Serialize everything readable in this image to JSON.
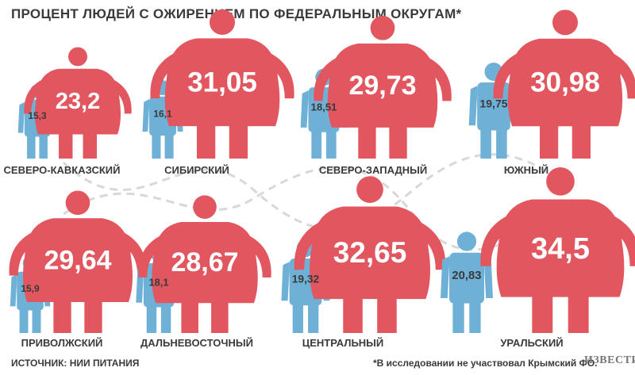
{
  "title": "ПРОЦЕНТ ЛЮДЕЙ С ОЖИРЕНИЕМ ПО ФЕДЕРАЛЬНЫМ ОКРУГАМ*",
  "source": "ИСТОЧНИК: НИИ ПИТАНИЯ",
  "footnote": "*В исследовании не участвовал Крымский ФО.",
  "logo": "ИЗВЕСТИЯ",
  "colors": {
    "men": "#6fb1d6",
    "women": "#e2575f",
    "dashed": "#ffffff",
    "text": "#3a3a3a"
  },
  "chart_data": {
    "type": "pictogram",
    "title": "ПРОЦЕНТ ЛЮДЕЙ С ОЖИРЕНИЕМ ПО ФЕДЕРАЛЬНЫМ ОКРУГАМ*",
    "categories": [
      "СЕВЕРО-КАВКАЗСКИЙ",
      "СИБИРСКИЙ",
      "СЕВЕРО-ЗАПАДНЫЙ",
      "ЮЖНЫЙ",
      "ПРИВОЛЖСКИЙ",
      "ДАЛЬНЕВОСТОЧНЫЙ",
      "ЦЕНТРАЛЬНЫЙ",
      "УРАЛЬСКИЙ"
    ],
    "series": [
      {
        "values": [
          15.3,
          16.1,
          18.51,
          19.75,
          15.9,
          18.1,
          19.32,
          20.83
        ],
        "labels": [
          "15,3",
          "16,1",
          "18,51",
          "19,75",
          "15,9",
          "18,1",
          "19,32",
          "20,83"
        ]
      },
      {
        "values": [
          23.2,
          31.05,
          29.73,
          30.98,
          29.64,
          28.67,
          32.65,
          34.5
        ],
        "labels": [
          "23,2",
          "31,05",
          "29,73",
          "30,98",
          "29,64",
          "28,67",
          "32,65",
          "34,5"
        ]
      }
    ]
  }
}
